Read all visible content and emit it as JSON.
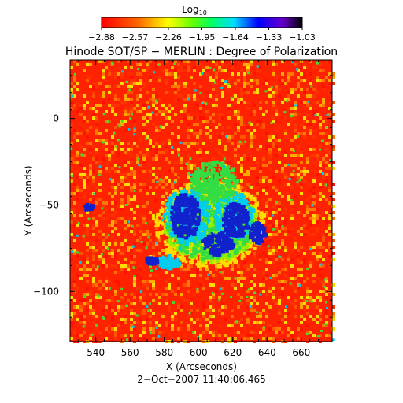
{
  "colorbar": {
    "title": "Log",
    "title_sub": "10",
    "tick_labels": [
      "−2.88",
      "−2.57",
      "−2.26",
      "−1.95",
      "−1.64",
      "−1.33",
      "−1.03"
    ],
    "min": -2.88,
    "max": -1.03
  },
  "title": "Hinode SOT/SP − MERLIN : Degree of Polarization",
  "xlabel": "X (Arcseconds)",
  "ylabel": "Y (Arcseconds)",
  "date": "2−Oct−2007 11:40:06.465",
  "x_axis": {
    "range": [
      525,
      678
    ],
    "ticks": [
      540,
      560,
      580,
      600,
      620,
      640,
      660
    ],
    "tick_labels": [
      "540",
      "560",
      "580",
      "600",
      "620",
      "640",
      "660"
    ]
  },
  "y_axis": {
    "range": [
      -129,
      34
    ],
    "ticks": [
      0,
      -50,
      -100
    ],
    "tick_labels": [
      "0",
      "−50",
      "−100"
    ]
  },
  "colors": {
    "background_low": "#ff2200",
    "mid": "#ffdd00",
    "green": "#33dd44",
    "cyan": "#00ddee",
    "high": "#1122cc",
    "max": "#110011"
  }
}
